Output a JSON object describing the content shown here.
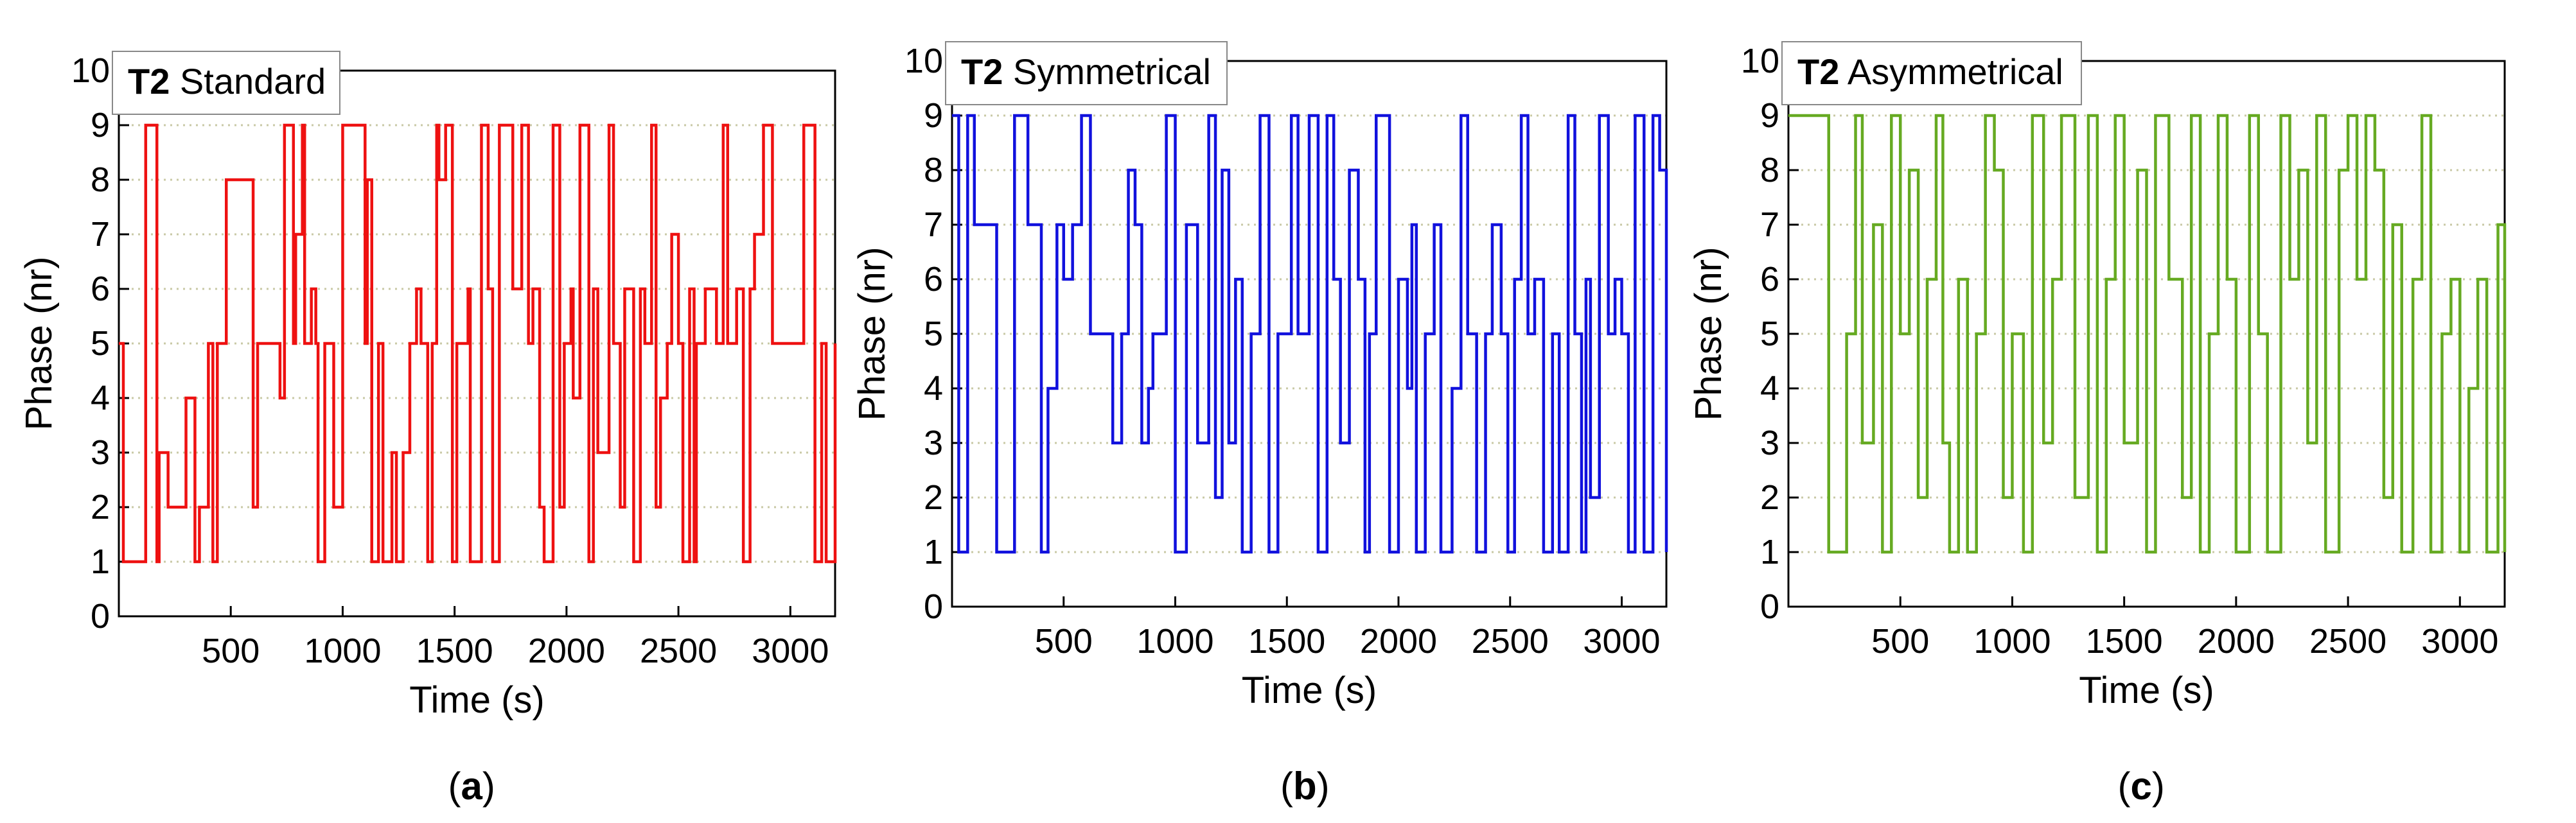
{
  "chart_data": [
    {
      "type": "line",
      "step": true,
      "title_bold": "T2",
      "title": "Standard",
      "xlabel": "Time (s)",
      "ylabel": "Phase (nr)",
      "xlim": [
        0,
        3200
      ],
      "ylim": [
        0,
        10
      ],
      "xticks": [
        500,
        1000,
        1500,
        2000,
        2500,
        3000
      ],
      "yticks": [
        0,
        1,
        2,
        3,
        4,
        5,
        6,
        7,
        8,
        9,
        10
      ],
      "grid": "horizontal dotted",
      "legend": "top-left",
      "panel_label": "a",
      "color": "#ee1111",
      "x": [
        0,
        20,
        120,
        170,
        180,
        200,
        220,
        300,
        340,
        360,
        400,
        420,
        440,
        480,
        500,
        600,
        620,
        720,
        740,
        780,
        790,
        820,
        830,
        860,
        880,
        890,
        920,
        930,
        960,
        1000,
        1100,
        1110,
        1130,
        1160,
        1180,
        1220,
        1240,
        1270,
        1300,
        1330,
        1350,
        1380,
        1400,
        1420,
        1430,
        1460,
        1490,
        1510,
        1530,
        1560,
        1570,
        1620,
        1650,
        1670,
        1700,
        1760,
        1800,
        1830,
        1850,
        1880,
        1900,
        1940,
        1970,
        1990,
        2020,
        2030,
        2060,
        2100,
        2120,
        2140,
        2190,
        2210,
        2240,
        2260,
        2300,
        2330,
        2350,
        2380,
        2400,
        2420,
        2450,
        2470,
        2500,
        2520,
        2550,
        2570,
        2580,
        2620,
        2650,
        2670,
        2690,
        2700,
        2720,
        2760,
        2790,
        2820,
        2840,
        2880,
        2920,
        2960,
        2990,
        3040,
        3060,
        3110,
        3140,
        3160,
        3200
      ],
      "y": [
        5,
        1,
        9,
        1,
        3,
        3,
        2,
        4,
        1,
        2,
        5,
        1,
        5,
        8,
        8,
        2,
        5,
        4,
        9,
        5,
        7,
        9,
        5,
        6,
        5,
        1,
        5,
        5,
        2,
        9,
        5,
        8,
        1,
        5,
        1,
        3,
        1,
        3,
        5,
        6,
        5,
        1,
        5,
        9,
        8,
        9,
        1,
        5,
        5,
        6,
        1,
        9,
        6,
        1,
        9,
        6,
        9,
        5,
        6,
        2,
        1,
        9,
        2,
        5,
        6,
        4,
        9,
        1,
        6,
        3,
        9,
        5,
        2,
        6,
        1,
        6,
        5,
        9,
        2,
        4,
        5,
        7,
        5,
        1,
        6,
        1,
        5,
        6,
        6,
        5,
        5,
        9,
        5,
        6,
        1,
        6,
        7,
        9,
        5,
        5,
        5,
        5,
        9,
        1,
        5,
        1,
        5
      ],
      "legend_entry": {
        "bold": "T2",
        "text": "Standard"
      }
    },
    {
      "type": "line",
      "step": true,
      "title_bold": "T2",
      "title": "Symmetrical",
      "xlabel": "Time (s)",
      "ylabel": "Phase (nr)",
      "xlim": [
        0,
        3200
      ],
      "ylim": [
        0,
        10
      ],
      "xticks": [
        500,
        1000,
        1500,
        2000,
        2500,
        3000
      ],
      "yticks": [
        0,
        1,
        2,
        3,
        4,
        5,
        6,
        7,
        8,
        9,
        10
      ],
      "grid": "horizontal dotted",
      "legend": "top-left",
      "panel_label": "b",
      "color": "#1111dd",
      "x": [
        0,
        30,
        70,
        100,
        150,
        200,
        280,
        340,
        400,
        430,
        470,
        500,
        540,
        580,
        620,
        680,
        720,
        760,
        790,
        820,
        850,
        880,
        900,
        960,
        1000,
        1050,
        1100,
        1150,
        1180,
        1210,
        1240,
        1270,
        1300,
        1340,
        1380,
        1420,
        1460,
        1480,
        1520,
        1550,
        1600,
        1640,
        1680,
        1710,
        1740,
        1780,
        1820,
        1850,
        1870,
        1900,
        1960,
        2000,
        2040,
        2060,
        2080,
        2120,
        2160,
        2190,
        2240,
        2280,
        2310,
        2350,
        2390,
        2420,
        2460,
        2490,
        2520,
        2550,
        2580,
        2610,
        2650,
        2690,
        2720,
        2760,
        2790,
        2820,
        2840,
        2860,
        2900,
        2940,
        2970,
        3000,
        3030,
        3060,
        3100,
        3140,
        3170,
        3200
      ],
      "y": [
        9,
        1,
        9,
        7,
        7,
        1,
        9,
        7,
        1,
        4,
        7,
        6,
        7,
        9,
        5,
        5,
        3,
        5,
        8,
        7,
        3,
        4,
        5,
        9,
        1,
        7,
        3,
        9,
        2,
        8,
        3,
        6,
        1,
        5,
        9,
        1,
        5,
        5,
        9,
        5,
        9,
        1,
        9,
        6,
        3,
        8,
        6,
        1,
        5,
        9,
        1,
        6,
        4,
        7,
        1,
        5,
        7,
        1,
        4,
        9,
        5,
        1,
        5,
        7,
        5,
        1,
        6,
        9,
        5,
        6,
        1,
        5,
        1,
        9,
        5,
        1,
        6,
        2,
        9,
        5,
        6,
        5,
        1,
        9,
        1,
        9,
        8,
        1
      ],
      "legend_entry": {
        "bold": "T2",
        "text": "Symmetrical"
      }
    },
    {
      "type": "line",
      "step": true,
      "title_bold": "T2",
      "title": "Asymmetrical",
      "xlabel": "Time (s)",
      "ylabel": "Phase (nr)",
      "xlim": [
        0,
        3200
      ],
      "ylim": [
        0,
        10
      ],
      "xticks": [
        500,
        1000,
        1500,
        2000,
        2500,
        3000
      ],
      "yticks": [
        0,
        1,
        2,
        3,
        4,
        5,
        6,
        7,
        8,
        9,
        10
      ],
      "grid": "horizontal dotted",
      "legend": "top-left",
      "panel_label": "c",
      "color": "#66aa22",
      "x": [
        0,
        180,
        260,
        300,
        330,
        380,
        420,
        460,
        500,
        540,
        580,
        620,
        660,
        690,
        720,
        760,
        800,
        840,
        880,
        920,
        960,
        1000,
        1050,
        1090,
        1140,
        1180,
        1220,
        1280,
        1340,
        1380,
        1420,
        1460,
        1500,
        1560,
        1600,
        1640,
        1700,
        1760,
        1800,
        1840,
        1880,
        1920,
        1960,
        2000,
        2060,
        2100,
        2140,
        2200,
        2240,
        2280,
        2320,
        2360,
        2400,
        2460,
        2500,
        2540,
        2580,
        2620,
        2660,
        2700,
        2740,
        2790,
        2830,
        2870,
        2920,
        2960,
        3000,
        3040,
        3080,
        3120,
        3170,
        3200
      ],
      "y": [
        9,
        1,
        5,
        9,
        3,
        7,
        1,
        9,
        5,
        8,
        2,
        6,
        9,
        3,
        1,
        6,
        1,
        5,
        9,
        8,
        2,
        5,
        1,
        9,
        3,
        6,
        9,
        2,
        9,
        1,
        6,
        9,
        3,
        8,
        1,
        9,
        6,
        2,
        9,
        1,
        5,
        9,
        6,
        1,
        9,
        5,
        1,
        9,
        6,
        8,
        3,
        9,
        1,
        8,
        9,
        6,
        9,
        8,
        2,
        7,
        1,
        6,
        9,
        1,
        5,
        6,
        1,
        4,
        6,
        1,
        7,
        1
      ],
      "legend_entry": {
        "bold": "T2",
        "text": "Asymmetrical"
      }
    }
  ]
}
